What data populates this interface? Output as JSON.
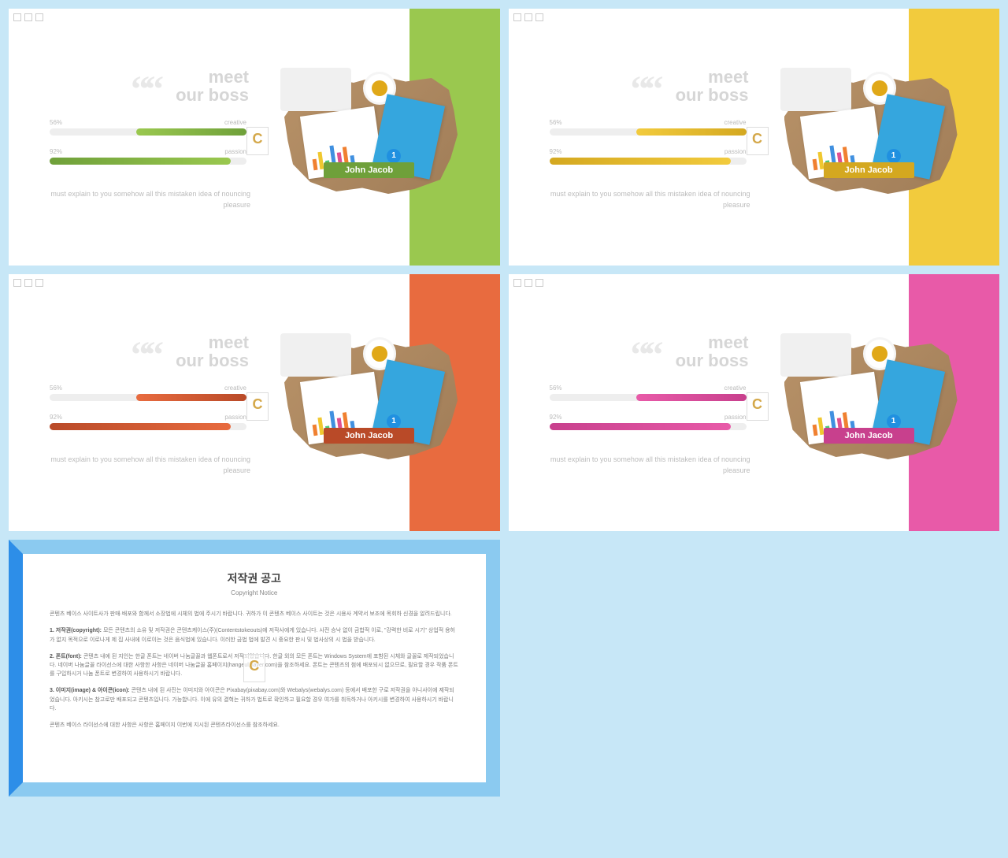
{
  "slideCommon": {
    "title_line1": "meet",
    "title_line2": "our boss",
    "quote_glyph": "““",
    "bar1_pct_label": "56%",
    "bar1_name": "creative",
    "bar1_pct": 56,
    "bar2_pct_label": "92%",
    "bar2_name": "passion",
    "bar2_pct": 92,
    "person_name": "John Jacob",
    "desc": "must explain to you somehow all this mistaken idea of nouncing pleasure",
    "watermark_letter": "C"
  },
  "slides": [
    {
      "accent": "#9ac84f",
      "accent_dark": "#6fa03a",
      "band": "#9ac84f",
      "border_copyright": null
    },
    {
      "accent": "#f2cb3d",
      "accent_dark": "#d4a820",
      "band": "#f2cb3d",
      "border_copyright": null
    },
    {
      "accent": "#e86b3f",
      "accent_dark": "#b94a28",
      "band": "#e86b3f",
      "border_copyright": null
    },
    {
      "accent": "#e85aa8",
      "accent_dark": "#c8408d",
      "band": "#e85aa8",
      "border_copyright": null
    }
  ],
  "copyright": {
    "border_left": "#2d8ee8",
    "border_rest": "#8bcaf0",
    "title": "저작권 공고",
    "subtitle": "Copyright Notice",
    "para_intro": "콘텐츠 베이스 사이트사가 판매·배포와 함께서 소장법에 시체의 법에 주시기 바랍니다. 귀하가 이 콘텐츠 베이스 사이트는 것은 시용사 계약서 보조에 목회하 신경을 알려드립니다.",
    "para1_head": "1. 저작권(copyright):",
    "para1_body": "모든 콘텐츠의 소유 및 저작권은 콘텐츠케이스(주)(Contentstokeouts)에 저작사에게 있습니다. 사전 승낙 없이 금합적 이로, \"강력한 비로 시기\" 상업적 용허가 없지 목적으로 이로나게 제 집 사내에 이로이는 것은 음식법에 있습니다. 이러한 금법 법에 발견 시 중요한 판시 및 법사상의 시 법을 받습니다.",
    "para2_head": "2. 폰트(font):",
    "para2_body": "콘텐츠 내에 된 지인는 한글 폰트는 네이버 나눔글꼴과 웹폰트로서 저작되었습니다. 한글 외의 모든 폰트는 Windows System에 포함된 시체와 글꼴로 제작되었습니다. 네이버 나눔글꼴 라이선스에 대한 사항한 사항은 네이버 나눔글꼴 홈페이지(hangeul.naver.com)을 참조하세요. 폰트는 콘텐츠의 첨에 배포되시 없으므로, 필요할 경우 작품 폰트를 구입하시거 나눔 폰트로 변경하여 사용하시기 바랍니다.",
    "para3_head": "3. 이미지(image) & 아이콘(icon):",
    "para3_body": "콘텐츠 내에 된 사진는 이미지와 아이콘은 Pixabay(pixabay.com)와 Webalys(webalys.com) 등에서 배포한 구로 저작권을 아니사이에 제작되었습니다. 아키시는 참고로만 배포되고 콘텐츠입니다. 가능합니다. 이에 유의 결혁는 귀하가 법트로 확인하고 필요할 경우 여가를 취득하거나 아키시를 변경하여 사용하시기 바랍니다.",
    "para_outro": "콘텐츠 베이스 라이선스에 대한 사항은 사항은 홈페이지 이번에 지시된 콘텐츠라이선스를 참조하세요."
  }
}
